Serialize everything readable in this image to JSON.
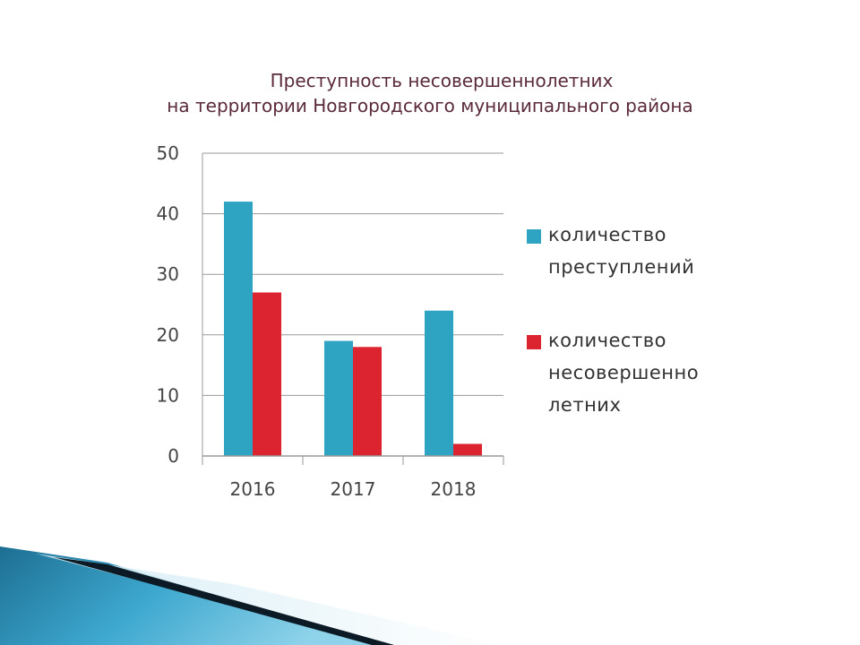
{
  "slide": {
    "title_line1": "Преступность несовершеннолетних",
    "title_line2": "на территории Новгородского муниципального района"
  },
  "colors": {
    "series1": "#2fa3c2",
    "series2": "#dc2430",
    "title": "#5a2a3a",
    "grid": "#9a9a9a"
  },
  "legend": {
    "item1_lines": [
      "количество",
      "преступлений"
    ],
    "item2_lines": [
      "количество",
      "несовершенно",
      "летних"
    ]
  },
  "chart_data": {
    "type": "bar",
    "categories": [
      "2016",
      "2017",
      "2018"
    ],
    "series": [
      {
        "values": [
          42,
          19,
          24
        ]
      },
      {
        "values": [
          27,
          18,
          2
        ]
      }
    ],
    "ylim": [
      0,
      50
    ],
    "yticks": [
      "0",
      "10",
      "20",
      "30",
      "40",
      "50"
    ],
    "grid": true,
    "legend_position": "right"
  }
}
